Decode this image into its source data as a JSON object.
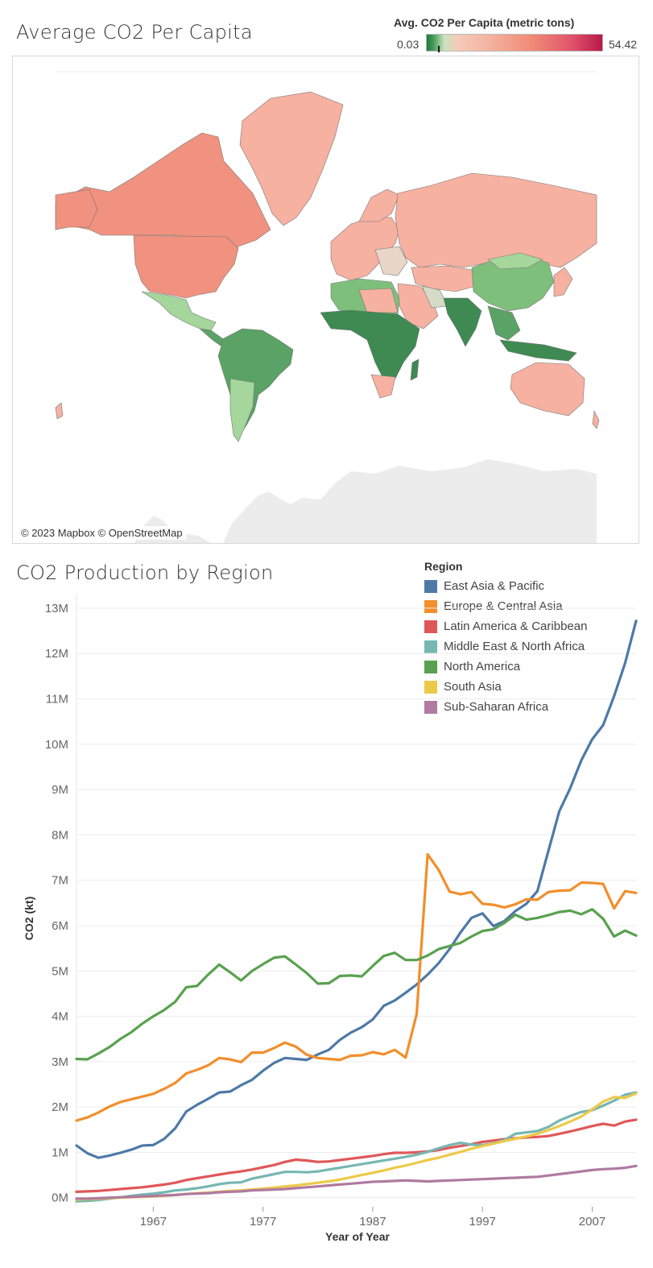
{
  "map": {
    "title": "Average CO2 Per Capita",
    "legend_title": "Avg. CO2 Per Capita (metric tons)",
    "legend_min": "0.03",
    "legend_max": "54.42",
    "credit": "© 2023 Mapbox © OpenStreetMap",
    "colors": {
      "low": "#2e7d45",
      "mid": "#a5d69b",
      "high_light": "#f4b4a1",
      "high": "#ef9580",
      "top": "#b81849",
      "land_none": "#ececec"
    }
  },
  "line_chart": {
    "title": "CO2 Production by Region",
    "legend_title": "Region"
  },
  "chart_data": {
    "type": "line",
    "title": "CO2 Production by Region",
    "xlabel": "Year of Year",
    "ylabel": "CO2 (kt)",
    "xlim": [
      1960,
      2011
    ],
    "ylim": [
      -200000,
      13300000
    ],
    "x_ticks": [
      1967,
      1977,
      1987,
      1997,
      2007
    ],
    "y_ticks": [
      {
        "value": 0,
        "label": "0M"
      },
      {
        "value": 1000000,
        "label": "1M"
      },
      {
        "value": 2000000,
        "label": "2M"
      },
      {
        "value": 3000000,
        "label": "3M"
      },
      {
        "value": 4000000,
        "label": "4M"
      },
      {
        "value": 5000000,
        "label": "5M"
      },
      {
        "value": 6000000,
        "label": "6M"
      },
      {
        "value": 7000000,
        "label": "7M"
      },
      {
        "value": 8000000,
        "label": "8M"
      },
      {
        "value": 9000000,
        "label": "9M"
      },
      {
        "value": 10000000,
        "label": "10M"
      },
      {
        "value": 11000000,
        "label": "11M"
      },
      {
        "value": 12000000,
        "label": "12M"
      },
      {
        "value": 13000000,
        "label": "13M"
      }
    ],
    "grid": "horizontal",
    "legend_position": "top-right",
    "x_start": 1960,
    "series": [
      {
        "name": "East Asia & Pacific",
        "color": "#4e79a7",
        "values": [
          1150000,
          980000,
          880000,
          930000,
          990000,
          1060000,
          1150000,
          1160000,
          1300000,
          1530000,
          1900000,
          2050000,
          2180000,
          2320000,
          2340000,
          2480000,
          2600000,
          2800000,
          2970000,
          3080000,
          3060000,
          3040000,
          3160000,
          3260000,
          3480000,
          3640000,
          3760000,
          3930000,
          4230000,
          4350000,
          4520000,
          4700000,
          4920000,
          5170000,
          5480000,
          5850000,
          6170000,
          6270000,
          5990000,
          6100000,
          6320000,
          6480000,
          6760000,
          7640000,
          8520000,
          9030000,
          9640000,
          10110000,
          10420000,
          11060000,
          11790000,
          12720000
        ]
      },
      {
        "name": "Europe & Central Asia",
        "color": "#f28e2b",
        "values": [
          1700000,
          1770000,
          1880000,
          2010000,
          2110000,
          2170000,
          2230000,
          2290000,
          2400000,
          2530000,
          2740000,
          2820000,
          2920000,
          3080000,
          3050000,
          2990000,
          3200000,
          3200000,
          3300000,
          3420000,
          3330000,
          3150000,
          3080000,
          3060000,
          3040000,
          3130000,
          3140000,
          3210000,
          3160000,
          3260000,
          3090000,
          4050000,
          7570000,
          7230000,
          6750000,
          6690000,
          6740000,
          6480000,
          6460000,
          6400000,
          6470000,
          6580000,
          6570000,
          6740000,
          6770000,
          6780000,
          6950000,
          6940000,
          6920000,
          6380000,
          6760000,
          6720000
        ]
      },
      {
        "name": "Latin America & Caribbean",
        "color": "#e15759",
        "values": [
          130000,
          140000,
          150000,
          170000,
          190000,
          210000,
          230000,
          260000,
          290000,
          330000,
          390000,
          430000,
          470000,
          510000,
          550000,
          580000,
          620000,
          670000,
          720000,
          790000,
          840000,
          820000,
          790000,
          800000,
          830000,
          860000,
          890000,
          920000,
          960000,
          990000,
          990000,
          1000000,
          1020000,
          1050000,
          1100000,
          1140000,
          1180000,
          1230000,
          1260000,
          1290000,
          1310000,
          1330000,
          1340000,
          1360000,
          1410000,
          1460000,
          1520000,
          1580000,
          1630000,
          1590000,
          1680000,
          1720000
        ]
      },
      {
        "name": "Middle East & North Africa",
        "color": "#76b7b2",
        "values": [
          -80000,
          -70000,
          -50000,
          -20000,
          10000,
          40000,
          70000,
          90000,
          120000,
          160000,
          180000,
          210000,
          250000,
          300000,
          330000,
          340000,
          420000,
          470000,
          520000,
          570000,
          570000,
          560000,
          580000,
          620000,
          660000,
          700000,
          740000,
          780000,
          820000,
          860000,
          900000,
          950000,
          1010000,
          1090000,
          1160000,
          1210000,
          1170000,
          1160000,
          1200000,
          1270000,
          1410000,
          1440000,
          1470000,
          1560000,
          1700000,
          1800000,
          1890000,
          1930000,
          2030000,
          2140000,
          2270000,
          2320000
        ]
      },
      {
        "name": "North America",
        "color": "#59a14f",
        "values": [
          3060000,
          3050000,
          3180000,
          3320000,
          3500000,
          3650000,
          3840000,
          4000000,
          4140000,
          4320000,
          4640000,
          4670000,
          4920000,
          5140000,
          4970000,
          4790000,
          5000000,
          5150000,
          5290000,
          5320000,
          5140000,
          4950000,
          4720000,
          4730000,
          4890000,
          4900000,
          4880000,
          5110000,
          5330000,
          5400000,
          5240000,
          5240000,
          5340000,
          5480000,
          5550000,
          5620000,
          5760000,
          5880000,
          5920000,
          6060000,
          6240000,
          6130000,
          6170000,
          6230000,
          6300000,
          6330000,
          6250000,
          6360000,
          6150000,
          5760000,
          5890000,
          5780000
        ]
      },
      {
        "name": "South Asia",
        "color": "#edc948",
        "values": [
          -40000,
          -30000,
          -20000,
          -10000,
          0,
          10000,
          20000,
          30000,
          40000,
          60000,
          80000,
          100000,
          110000,
          130000,
          150000,
          160000,
          180000,
          200000,
          220000,
          250000,
          270000,
          300000,
          330000,
          360000,
          400000,
          450000,
          500000,
          550000,
          600000,
          660000,
          710000,
          770000,
          830000,
          880000,
          950000,
          1010000,
          1080000,
          1140000,
          1190000,
          1250000,
          1300000,
          1350000,
          1410000,
          1490000,
          1580000,
          1680000,
          1790000,
          1950000,
          2120000,
          2220000,
          2200000,
          2300000
        ]
      },
      {
        "name": "Sub-Saharan Africa",
        "color": "#b07aa1",
        "values": [
          -20000,
          -20000,
          -10000,
          0,
          10000,
          20000,
          30000,
          40000,
          50000,
          60000,
          80000,
          90000,
          100000,
          120000,
          130000,
          140000,
          160000,
          170000,
          180000,
          190000,
          210000,
          230000,
          250000,
          270000,
          290000,
          310000,
          330000,
          350000,
          360000,
          370000,
          380000,
          370000,
          360000,
          370000,
          380000,
          390000,
          400000,
          410000,
          420000,
          430000,
          440000,
          450000,
          460000,
          490000,
          520000,
          550000,
          580000,
          610000,
          630000,
          640000,
          660000,
          700000
        ]
      }
    ]
  }
}
